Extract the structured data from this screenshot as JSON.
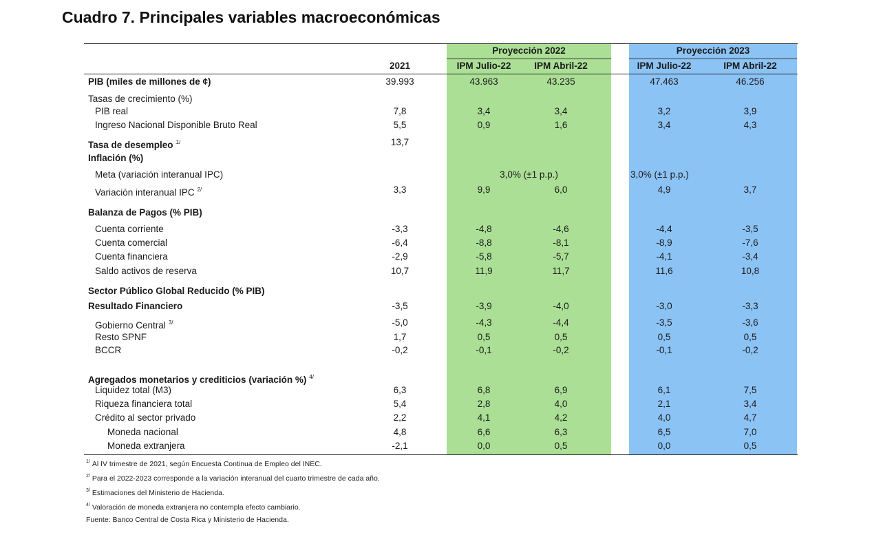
{
  "title": "Cuadro 7. Principales variables macroeconómicas",
  "colors": {
    "proj_2022": "#abdf96",
    "proj_2023": "#8cc3f5"
  },
  "header": {
    "group_2022": "Proyección 2022",
    "group_2023": "Proyección 2023",
    "col_2021": "2021",
    "col_2022_a": "IPM Julio-22",
    "col_2022_b": "IPM Abril-22",
    "col_2023_a": "IPM Julio-22",
    "col_2023_b": "IPM Abril-22"
  },
  "rows": {
    "pib": {
      "label": "PIB (miles de millones de ¢)",
      "v2021": "39.993",
      "v22a": "43.963",
      "v22b": "43.235",
      "v23a": "47.463",
      "v23b": "46.256"
    },
    "tasas": {
      "label": "Tasas de crecimiento (%)"
    },
    "pib_real": {
      "label": "PIB real",
      "v2021": "7,8",
      "v22a": "3,4",
      "v22b": "3,4",
      "v23a": "3,2",
      "v23b": "3,9"
    },
    "ingreso": {
      "label": "Ingreso Nacional Disponible Bruto Real",
      "v2021": "5,5",
      "v22a": "0,9",
      "v22b": "1,6",
      "v23a": "3,4",
      "v23b": "4,3"
    },
    "desempleo": {
      "label": "Tasa de desempleo",
      "note": "1/",
      "v2021": "13,7"
    },
    "inflacion": {
      "label": "Inflación (%)"
    },
    "meta": {
      "label": "Meta (variación interanual IPC)",
      "v2022": "3,0% (±1 p.p.)",
      "v2023": "3,0% (±1 p.p.)"
    },
    "var_ipc": {
      "label": "Variación interanual IPC",
      "note": "2/",
      "v2021": "3,3",
      "v22a": "9,9",
      "v22b": "6,0",
      "v23a": "4,9",
      "v23b": "3,7"
    },
    "balanza": {
      "label": "Balanza de Pagos (% PIB)"
    },
    "cta_corriente": {
      "label": "Cuenta corriente",
      "v2021": "-3,3",
      "v22a": "-4,8",
      "v22b": "-4,6",
      "v23a": "-4,4",
      "v23b": "-3,5"
    },
    "cta_comercial": {
      "label": "Cuenta comercial",
      "v2021": "-6,4",
      "v22a": "-8,8",
      "v22b": "-8,1",
      "v23a": "-8,9",
      "v23b": "-7,6"
    },
    "cta_financiera": {
      "label": "Cuenta financiera",
      "v2021": "-2,9",
      "v22a": "-5,8",
      "v22b": "-5,7",
      "v23a": "-4,1",
      "v23b": "-3,4"
    },
    "saldo_reserva": {
      "label": "Saldo activos de reserva",
      "v2021": "10,7",
      "v22a": "11,9",
      "v22b": "11,7",
      "v23a": "11,6",
      "v23b": "10,8"
    },
    "sector_publico": {
      "label": "Sector Público Global Reducido (% PIB)"
    },
    "resultado": {
      "label": "Resultado Financiero",
      "v2021": "-3,5",
      "v22a": "-3,9",
      "v22b": "-4,0",
      "v23a": "-3,0",
      "v23b": "-3,3"
    },
    "gobierno": {
      "label": "Gobierno Central",
      "note": "3/",
      "v2021": "-5,0",
      "v22a": "-4,3",
      "v22b": "-4,4",
      "v23a": "-3,5",
      "v23b": "-3,6"
    },
    "resto_spnf": {
      "label": "Resto SPNF",
      "v2021": "1,7",
      "v22a": "0,5",
      "v22b": "0,5",
      "v23a": "0,5",
      "v23b": "0,5"
    },
    "bccr": {
      "label": "BCCR",
      "v2021": "-0,2",
      "v22a": "-0,1",
      "v22b": "-0,2",
      "v23a": "-0,1",
      "v23b": "-0,2"
    },
    "agregados": {
      "label": "Agregados monetarios y crediticios (variación %)",
      "note": "4/"
    },
    "liquidez": {
      "label": "Liquidez total (M3)",
      "v2021": "6,3",
      "v22a": "6,8",
      "v22b": "6,9",
      "v23a": "6,1",
      "v23b": "7,5"
    },
    "riqueza": {
      "label": "Riqueza financiera total",
      "v2021": "5,4",
      "v22a": "2,8",
      "v22b": "4,0",
      "v23a": "2,1",
      "v23b": "3,4"
    },
    "credito": {
      "label": "Crédito al sector privado",
      "v2021": "2,2",
      "v22a": "4,1",
      "v22b": "4,2",
      "v23a": "4,0",
      "v23b": "4,7"
    },
    "moneda_nac": {
      "label": "Moneda nacional",
      "v2021": "4,8",
      "v22a": "6,6",
      "v22b": "6,3",
      "v23a": "6,5",
      "v23b": "7,0"
    },
    "moneda_ext": {
      "label": "Moneda extranjera",
      "v2021": "-2,1",
      "v22a": "0,0",
      "v22b": "0,5",
      "v23a": "0,0",
      "v23b": "0,5"
    }
  },
  "footnotes": {
    "n1_mark": "1/",
    "n1": "Al IV trimestre de 2021, según Encuesta Continua de Empleo del INEC.",
    "n2_mark": "2/",
    "n2": "Para el 2022-2023 corresponde a la variación interanual del cuarto trimestre de cada año.",
    "n3_mark": "3/",
    "n3": "Estimaciones del Ministerio de Hacienda.",
    "n4_mark": "4/",
    "n4": "Valoración de moneda extranjera no contempla efecto cambiario.",
    "source": "Fuente: Banco Central de Costa Rica y Ministerio de Hacienda."
  }
}
